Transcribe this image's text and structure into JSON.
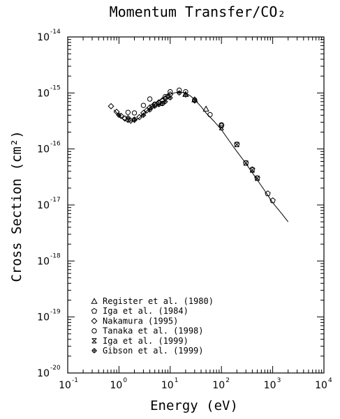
{
  "chart_data": {
    "type": "scatter",
    "title": "Momentum Transfer/CO₂",
    "xlabel": "Energy (eV)",
    "ylabel": "Cross Section (cm²)",
    "x_scale": "log",
    "y_scale": "log",
    "xlim": [
      0.1,
      10000
    ],
    "ylim": [
      1e-20,
      1e-14
    ],
    "x_ticks": [
      {
        "base": "10",
        "exp": "-1"
      },
      {
        "base": "10",
        "exp": "0"
      },
      {
        "base": "10",
        "exp": "1"
      },
      {
        "base": "10",
        "exp": "2"
      },
      {
        "base": "10",
        "exp": "3"
      },
      {
        "base": "10",
        "exp": "4"
      }
    ],
    "y_ticks": [
      {
        "base": "10",
        "exp": "-20"
      },
      {
        "base": "10",
        "exp": "-19"
      },
      {
        "base": "10",
        "exp": "-18"
      },
      {
        "base": "10",
        "exp": "-17"
      },
      {
        "base": "10",
        "exp": "-16"
      },
      {
        "base": "10",
        "exp": "-15"
      },
      {
        "base": "10",
        "exp": "-14"
      }
    ],
    "grid": false,
    "legend_position": "bottom-left",
    "recommended_curve": {
      "x": [
        0.8,
        1.0,
        1.2,
        1.5,
        2.0,
        2.5,
        3.0,
        4.0,
        5.0,
        6.0,
        8.0,
        10.0,
        12.0,
        15.0,
        20.0,
        25.0,
        30.0,
        40.0,
        50.0,
        70.0,
        100.0,
        150.0,
        200.0,
        300.0,
        500.0,
        700.0,
        1000.0,
        1500.0,
        2000.0
      ],
      "y": [
        5e-16,
        4e-16,
        3.4e-16,
        3.1e-16,
        3.2e-16,
        3.6e-16,
        4.2e-16,
        5.4e-16,
        6.4e-16,
        7.2e-16,
        8.5e-16,
        9.5e-16,
        1e-15,
        1.05e-15,
        1e-15,
        8.8e-16,
        7.6e-16,
        5.7e-16,
        4.4e-16,
        3.2e-16,
        2.2e-16,
        1.3e-16,
        9e-17,
        5.5e-17,
        2.8e-17,
        1.8e-17,
        1.1e-17,
        7e-18,
        5e-18
      ]
    },
    "series": [
      {
        "name": "Register et al. (1980)",
        "marker": "triangle",
        "x": [
          20,
          30,
          50
        ],
        "y": [
          9.5e-16,
          7.6e-16,
          5.2e-16
        ]
      },
      {
        "name": "Iga et al. (1984)",
        "marker": "pentagon",
        "x": [
          100,
          200,
          300,
          400,
          500,
          800,
          1000
        ],
        "y": [
          2.6e-16,
          1.2e-16,
          5.6e-17,
          4.3e-17,
          3e-17,
          1.6e-17,
          1.2e-17
        ]
      },
      {
        "name": "Nakamura (1995)",
        "marker": "diamond",
        "x": [
          0.7,
          0.9,
          1.1,
          1.3,
          1.5,
          1.7,
          2.0,
          2.5,
          3.0,
          3.5,
          4.0,
          4.5,
          5.0,
          6.0,
          7.0,
          8.0,
          9.0,
          10.0
        ],
        "y": [
          5.8e-16,
          4.6e-16,
          3.9e-16,
          3.5e-16,
          3.3e-16,
          3.2e-16,
          3.3e-16,
          3.7e-16,
          4.4e-16,
          4.9e-16,
          5.5e-16,
          5.8e-16,
          6.2e-16,
          6.8e-16,
          7.4e-16,
          8e-16,
          8.7e-16,
          9.4e-16
        ]
      },
      {
        "name": "Tanaka et al. (1998)",
        "marker": "circle",
        "x": [
          1.5,
          2.0,
          3.0,
          4.0,
          5.0,
          6.0,
          7.0,
          8.0,
          10.0,
          15.0,
          20.0,
          30.0,
          60.0,
          100.0
        ],
        "y": [
          4.5e-16,
          4.4e-16,
          6e-16,
          7.8e-16,
          6.3e-16,
          6.6e-16,
          6.5e-16,
          8.6e-16,
          1.05e-15,
          1.12e-15,
          1.05e-15,
          7.5e-16,
          4.1e-16,
          2.7e-16
        ]
      },
      {
        "name": "Iga et al. (1999)",
        "marker": "cross",
        "x": [
          100,
          200,
          300,
          400,
          500
        ],
        "y": [
          2.4e-16,
          1.2e-16,
          5.6e-17,
          4.2e-17,
          3e-17
        ]
      },
      {
        "name": "Gibson et al. (1999)",
        "marker": "plus",
        "x": [
          1.0,
          1.5,
          2.0,
          3.0,
          4.0,
          5.0,
          6.0,
          7.0,
          8.0,
          10.0,
          15.0,
          20.0,
          30.0
        ],
        "y": [
          4e-16,
          3.6e-16,
          3.4e-16,
          4e-16,
          5e-16,
          5.8e-16,
          6.2e-16,
          6.5e-16,
          7e-16,
          8.2e-16,
          1e-15,
          9.2e-16,
          7.2e-16
        ]
      }
    ]
  }
}
